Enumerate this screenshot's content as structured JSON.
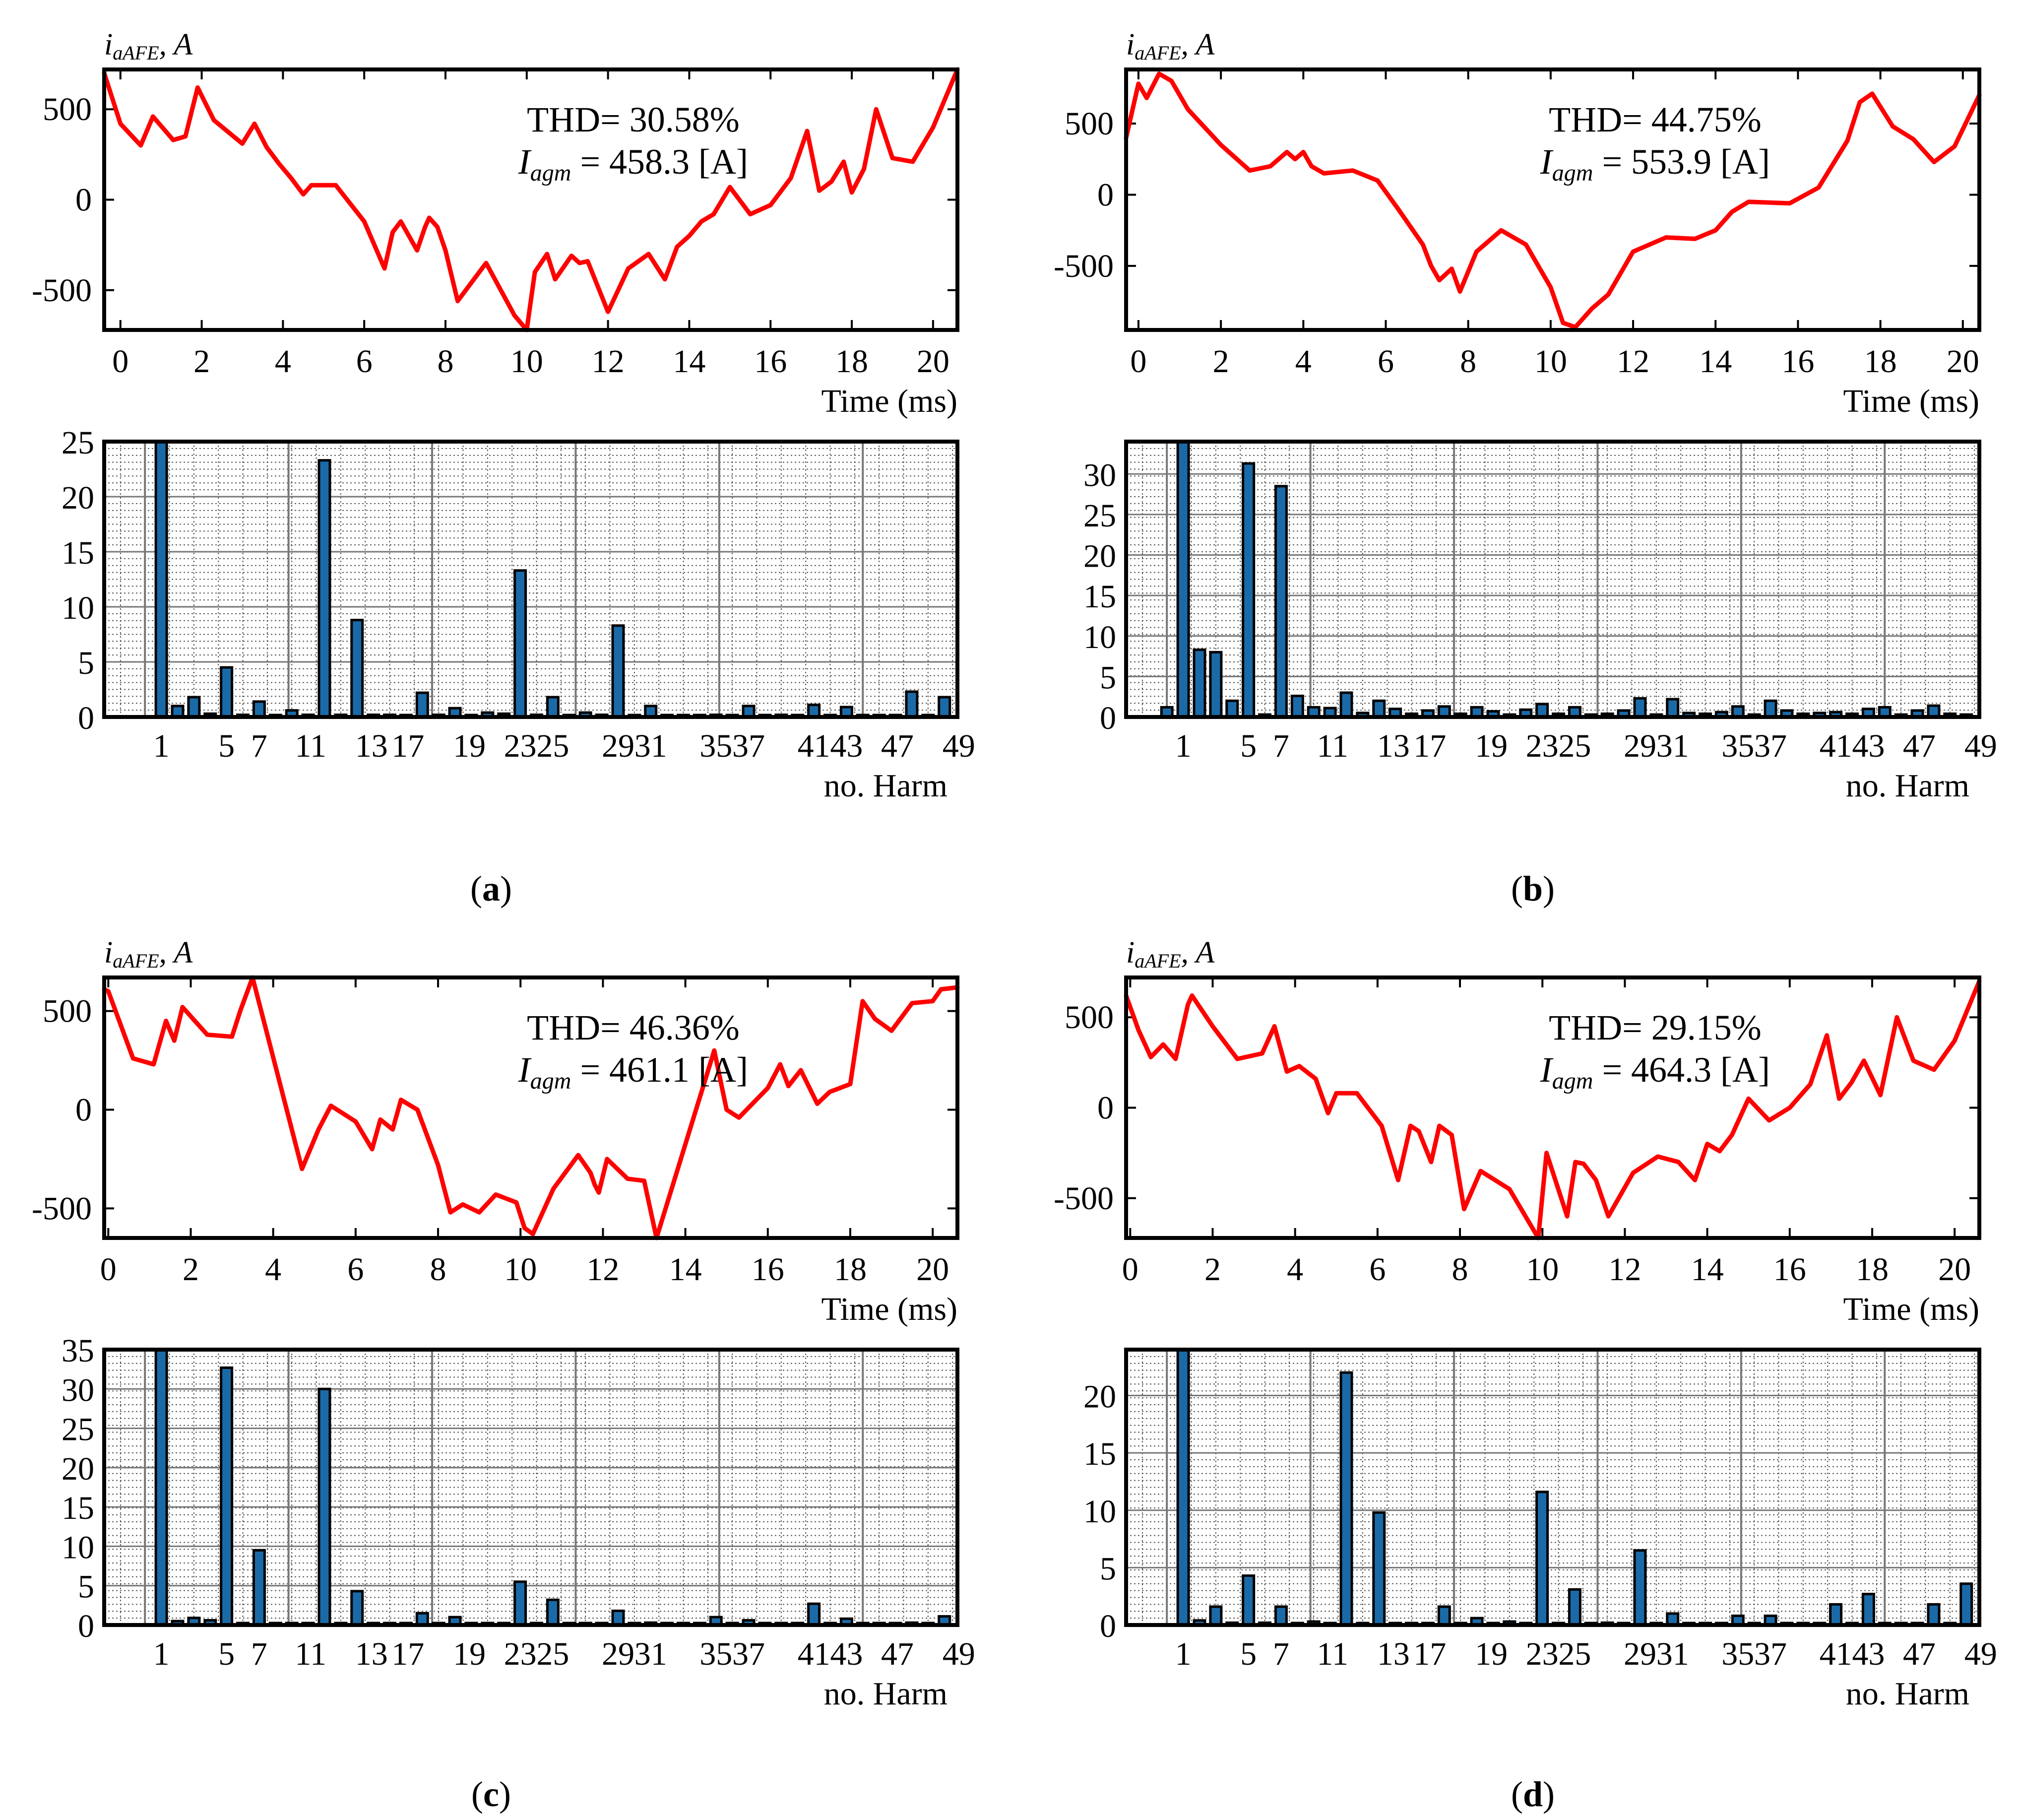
{
  "colors": {
    "waveform": "#ff0000",
    "bar_fill": "#1b6aa8",
    "bar_edge": "#000000",
    "grid": "#555555"
  },
  "chart_data": [
    {
      "panel": "a",
      "caption": "a",
      "waveform": {
        "type": "line",
        "ylabel_main": "i",
        "ylabel_sub": "aAFE",
        "ylabel_tail": ", A",
        "xlabel": "Time (ms)",
        "xlim": [
          -0.4,
          20.6
        ],
        "ylim": [
          -720,
          720
        ],
        "xticks": [
          0,
          2,
          4,
          6,
          8,
          10,
          12,
          14,
          16,
          18,
          20
        ],
        "yticks": [
          500,
          0,
          -500
        ],
        "thd_label": "THD= 30.58%",
        "iagm_main": "I",
        "iagm_sub": "agm",
        "iagm_value": " = 458.3 [A]",
        "x": [
          -0.4,
          0,
          0.5,
          0.8,
          1.3,
          1.6,
          1.9,
          2.3,
          3.0,
          3.3,
          3.6,
          3.9,
          4.2,
          4.5,
          4.7,
          5.3,
          6.0,
          6.5,
          6.7,
          6.9,
          7.0,
          7.3,
          7.5,
          7.6,
          7.8,
          8.0,
          8.3,
          9.0,
          9.7,
          10.0,
          10.2,
          10.5,
          10.7,
          11.1,
          11.3,
          11.5,
          12.0,
          12.5,
          13.0,
          13.4,
          13.7,
          14.0,
          14.3,
          14.6,
          15.0,
          15.5,
          16.0,
          16.5,
          16.9,
          17.2,
          17.5,
          17.8,
          18.0,
          18.3,
          18.6,
          19.0,
          19.5,
          20.0,
          20.6
        ],
        "y": [
          700,
          420,
          300,
          460,
          330,
          350,
          620,
          440,
          310,
          420,
          290,
          200,
          120,
          30,
          80,
          80,
          -120,
          -380,
          -180,
          -120,
          -160,
          -280,
          -150,
          -100,
          -150,
          -280,
          -560,
          -350,
          -640,
          -720,
          -400,
          -300,
          -440,
          -310,
          -350,
          -340,
          -620,
          -380,
          -300,
          -440,
          -260,
          -200,
          -120,
          -80,
          70,
          -80,
          -30,
          120,
          380,
          50,
          100,
          210,
          40,
          170,
          500,
          230,
          210,
          400,
          720
        ]
      },
      "harmonics": {
        "type": "bar",
        "xlabel": "no. Harm",
        "ylim": [
          0,
          25
        ],
        "yticks": [
          0,
          5,
          10,
          15,
          20,
          25
        ],
        "xticks": [
          "1",
          "5",
          "7",
          "11",
          "13",
          "17",
          "19",
          "23",
          "25",
          "29",
          "31",
          "35",
          "37",
          "41",
          "43",
          "47",
          "49"
        ],
        "orders": [
          1,
          2,
          3,
          4,
          5,
          6,
          7,
          8,
          9,
          10,
          11,
          12,
          13,
          14,
          15,
          16,
          17,
          18,
          19,
          20,
          21,
          22,
          23,
          24,
          25,
          26,
          27,
          28,
          29,
          30,
          31,
          32,
          33,
          34,
          35,
          36,
          37,
          38,
          39,
          40,
          41,
          42,
          43,
          44,
          45,
          46,
          47,
          48,
          49
        ],
        "values": [
          25,
          1.0,
          1.8,
          0.3,
          4.5,
          0.2,
          1.4,
          0,
          0.6,
          0.2,
          23.3,
          0.2,
          8.8,
          0.2,
          0.2,
          0,
          2.2,
          0.2,
          0.8,
          0,
          0.4,
          0.3,
          13.3,
          0.2,
          1.8,
          0,
          0.4,
          0.2,
          8.3,
          0,
          1.0,
          0,
          0,
          0,
          0.2,
          0,
          1.0,
          0,
          0.2,
          0,
          1.1,
          0,
          0.9,
          0,
          0,
          0,
          2.3,
          0,
          1.8
        ]
      }
    },
    {
      "panel": "b",
      "caption": "b",
      "waveform": {
        "type": "line",
        "ylabel_main": "i",
        "ylabel_sub": "aAFE",
        "ylabel_tail": ", A",
        "xlabel": "Time (ms)",
        "xlim": [
          -0.3,
          20.4
        ],
        "ylim": [
          -950,
          880
        ],
        "xticks": [
          0,
          2,
          4,
          6,
          8,
          10,
          12,
          14,
          16,
          18,
          20
        ],
        "yticks": [
          500,
          0,
          -500
        ],
        "thd_label": "THD= 44.75%",
        "iagm_main": "I",
        "iagm_sub": "agm",
        "iagm_value": " = 553.9 [A]",
        "x": [
          -0.3,
          0.0,
          0.2,
          0.5,
          0.8,
          1.2,
          2.0,
          2.7,
          3.2,
          3.6,
          3.8,
          4.0,
          4.2,
          4.5,
          5.2,
          5.8,
          6.3,
          6.9,
          7.1,
          7.3,
          7.6,
          7.8,
          8.2,
          8.8,
          9.4,
          10.0,
          10.3,
          10.6,
          11.0,
          11.4,
          12.0,
          12.8,
          13.5,
          14.0,
          14.4,
          14.8,
          15.8,
          16.5,
          17.2,
          17.5,
          17.8,
          18.3,
          18.8,
          19.3,
          19.8,
          20.4
        ],
        "y": [
          400,
          780,
          680,
          850,
          800,
          600,
          350,
          170,
          200,
          300,
          250,
          300,
          200,
          150,
          170,
          100,
          -100,
          -350,
          -500,
          -600,
          -520,
          -680,
          -400,
          -250,
          -350,
          -650,
          -900,
          -930,
          -800,
          -700,
          -400,
          -300,
          -310,
          -250,
          -120,
          -50,
          -60,
          50,
          380,
          650,
          710,
          480,
          390,
          230,
          340,
          700
        ]
      },
      "harmonics": {
        "type": "bar",
        "xlabel": "no. Harm",
        "ylim": [
          0,
          34
        ],
        "yticks": [
          0,
          5,
          10,
          15,
          20,
          25,
          30
        ],
        "xticks": [
          "1",
          "5",
          "7",
          "11",
          "13",
          "17",
          "19",
          "23",
          "25",
          "29",
          "31",
          "35",
          "37",
          "41",
          "43",
          "47",
          "49"
        ],
        "orders": [
          0,
          1,
          2,
          3,
          4,
          5,
          6,
          7,
          8,
          9,
          10,
          11,
          12,
          13,
          14,
          15,
          16,
          17,
          18,
          19,
          20,
          21,
          22,
          23,
          24,
          25,
          26,
          27,
          28,
          29,
          30,
          31,
          32,
          33,
          34,
          35,
          36,
          37,
          38,
          39,
          40,
          41,
          42,
          43,
          44,
          45,
          46,
          47,
          48,
          49
        ],
        "values": [
          1.2,
          34,
          8.3,
          8.0,
          2.0,
          31.3,
          0.3,
          28.5,
          2.6,
          1.2,
          1.1,
          3.0,
          0.5,
          2.0,
          1.0,
          0.4,
          0.8,
          1.3,
          0.4,
          1.2,
          0.7,
          0.3,
          0.9,
          1.6,
          0.4,
          1.2,
          0.3,
          0.4,
          0.8,
          2.3,
          0.3,
          2.2,
          0.5,
          0.4,
          0.6,
          1.3,
          0.3,
          2.0,
          0.8,
          0.4,
          0.5,
          0.6,
          0.4,
          1.0,
          1.2,
          0.3,
          0.8,
          1.4,
          0.4,
          0.3
        ]
      }
    },
    {
      "panel": "c",
      "caption": "c",
      "waveform": {
        "type": "line",
        "ylabel_main": "i",
        "ylabel_sub": "aAFE",
        "ylabel_tail": ", A",
        "xlabel": "Time (ms)",
        "xlim": [
          -0.1,
          20.6
        ],
        "ylim": [
          -650,
          670
        ],
        "xticks": [
          0,
          2,
          4,
          6,
          8,
          10,
          12,
          14,
          16,
          18,
          20
        ],
        "yticks": [
          500,
          0,
          -500
        ],
        "thd_label": "THD= 46.36%",
        "iagm_main": "I",
        "iagm_sub": "agm",
        "iagm_value": " = 461.1 [A]",
        "x": [
          -0.1,
          0,
          0.6,
          1.1,
          1.4,
          1.6,
          1.8,
          2.4,
          3.0,
          3.2,
          3.5,
          4.7,
          5.1,
          5.4,
          6.0,
          6.4,
          6.6,
          6.9,
          7.1,
          7.5,
          8.0,
          8.3,
          8.6,
          9.0,
          9.4,
          9.9,
          10.1,
          10.3,
          10.8,
          11.4,
          11.7,
          11.8,
          11.9,
          12.1,
          12.6,
          13.0,
          13.3,
          14.7,
          15.0,
          15.3,
          16.0,
          16.3,
          16.5,
          16.8,
          17.2,
          17.5,
          18.0,
          18.3,
          18.6,
          19.0,
          19.5,
          20.0,
          20.2,
          20.6
        ],
        "y": [
          610,
          600,
          260,
          230,
          450,
          350,
          520,
          380,
          370,
          500,
          670,
          -300,
          -100,
          20,
          -60,
          -200,
          -50,
          -100,
          50,
          0,
          -280,
          -520,
          -480,
          -520,
          -430,
          -470,
          -600,
          -630,
          -400,
          -230,
          -320,
          -380,
          -420,
          -250,
          -350,
          -360,
          -650,
          300,
          0,
          -40,
          110,
          230,
          120,
          200,
          30,
          90,
          130,
          550,
          460,
          400,
          540,
          550,
          610,
          620
        ]
      },
      "harmonics": {
        "type": "bar",
        "xlabel": "no. Harm",
        "ylim": [
          0,
          35
        ],
        "yticks": [
          0,
          5,
          10,
          15,
          20,
          25,
          30,
          35
        ],
        "xticks": [
          "1",
          "5",
          "7",
          "11",
          "13",
          "17",
          "19",
          "23",
          "25",
          "29",
          "31",
          "35",
          "37",
          "41",
          "43",
          "47",
          "49"
        ],
        "orders": [
          1,
          2,
          3,
          4,
          5,
          6,
          7,
          8,
          9,
          10,
          11,
          12,
          13,
          14,
          15,
          16,
          17,
          18,
          19,
          20,
          21,
          22,
          23,
          24,
          25,
          26,
          27,
          28,
          29,
          30,
          31,
          32,
          33,
          34,
          35,
          36,
          37,
          38,
          39,
          40,
          41,
          42,
          43,
          44,
          45,
          46,
          47,
          48,
          49
        ],
        "values": [
          35,
          0.5,
          0.9,
          0.6,
          32.7,
          0.2,
          9.5,
          0,
          0.2,
          0.2,
          30.0,
          0,
          4.3,
          0,
          0,
          0,
          1.5,
          0,
          1.0,
          0,
          0,
          0,
          5.5,
          0,
          3.2,
          0,
          0.2,
          0,
          1.8,
          0,
          0.3,
          0,
          0,
          0,
          1.0,
          0,
          0.6,
          0,
          0,
          0,
          2.7,
          0,
          0.8,
          0,
          0,
          0,
          0.3,
          0,
          1.1
        ]
      }
    },
    {
      "panel": "d",
      "caption": "d",
      "waveform": {
        "type": "line",
        "ylabel_main": "i",
        "ylabel_sub": "aAFE",
        "ylabel_tail": ", A",
        "xlabel": "Time (ms)",
        "xlim": [
          -0.1,
          20.6
        ],
        "ylim": [
          -720,
          720
        ],
        "xticks": [
          0,
          2,
          4,
          6,
          8,
          10,
          12,
          14,
          16,
          18,
          20
        ],
        "yticks": [
          500,
          0,
          -500
        ],
        "thd_label": "THD= 29.15%",
        "iagm_main": "I",
        "iagm_sub": "agm",
        "iagm_value": " = 464.3 [A]",
        "x": [
          -0.1,
          0.2,
          0.5,
          0.8,
          1.1,
          1.4,
          1.5,
          2.0,
          2.6,
          3.2,
          3.5,
          3.8,
          4.1,
          4.5,
          4.8,
          5.0,
          5.5,
          6.1,
          6.5,
          6.8,
          7.0,
          7.3,
          7.5,
          7.8,
          8.1,
          8.5,
          9.2,
          9.9,
          10.1,
          10.6,
          10.8,
          11.0,
          11.3,
          11.6,
          12.2,
          12.8,
          13.3,
          13.7,
          14.0,
          14.3,
          14.6,
          15.0,
          15.5,
          16.0,
          16.5,
          16.9,
          17.2,
          17.5,
          17.8,
          18.2,
          18.6,
          19.0,
          19.5,
          20.0,
          20.6
        ],
        "y": [
          620,
          430,
          280,
          350,
          270,
          570,
          620,
          450,
          270,
          300,
          450,
          200,
          230,
          160,
          -30,
          80,
          80,
          -100,
          -400,
          -100,
          -130,
          -300,
          -100,
          -150,
          -560,
          -350,
          -450,
          -720,
          -250,
          -600,
          -300,
          -310,
          -400,
          -600,
          -360,
          -270,
          -300,
          -400,
          -200,
          -240,
          -150,
          50,
          -70,
          0,
          130,
          400,
          50,
          140,
          260,
          70,
          500,
          260,
          210,
          370,
          700
        ]
      },
      "harmonics": {
        "type": "bar",
        "xlabel": "no. Harm",
        "ylim": [
          0,
          24
        ],
        "yticks": [
          0,
          5,
          10,
          15,
          20
        ],
        "xticks": [
          "1",
          "5",
          "7",
          "11",
          "13",
          "17",
          "19",
          "23",
          "25",
          "29",
          "31",
          "35",
          "37",
          "41",
          "43",
          "47",
          "49"
        ],
        "orders": [
          1,
          2,
          3,
          4,
          5,
          6,
          7,
          8,
          9,
          10,
          11,
          12,
          13,
          14,
          15,
          16,
          17,
          18,
          19,
          20,
          21,
          22,
          23,
          24,
          25,
          26,
          27,
          28,
          29,
          30,
          31,
          32,
          33,
          34,
          35,
          36,
          37,
          38,
          39,
          40,
          41,
          42,
          43,
          44,
          45,
          46,
          47,
          48,
          49
        ],
        "values": [
          24,
          0.4,
          1.6,
          0.2,
          4.3,
          0.2,
          1.6,
          0,
          0.3,
          0,
          22.0,
          0,
          9.8,
          0,
          0,
          0,
          1.6,
          0,
          0.6,
          0,
          0.3,
          0,
          11.6,
          0,
          3.1,
          0,
          0.2,
          0,
          6.5,
          0,
          1.0,
          0,
          0,
          0,
          0.8,
          0,
          0.8,
          0,
          0,
          0,
          1.8,
          0,
          2.7,
          0,
          0,
          0,
          1.8,
          0,
          3.6
        ]
      }
    }
  ]
}
